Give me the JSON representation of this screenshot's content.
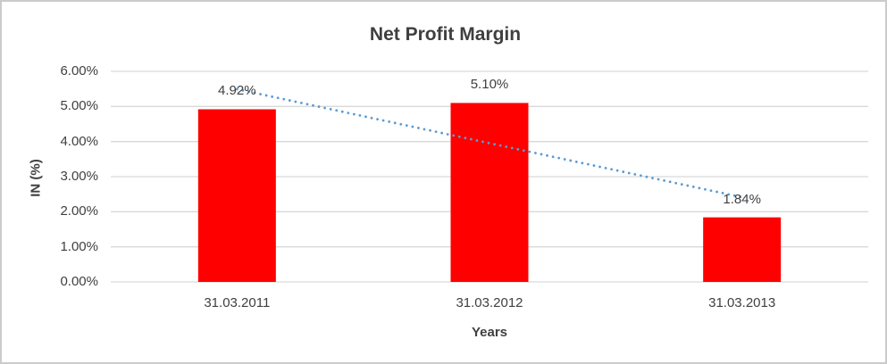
{
  "chart_data": {
    "type": "bar",
    "title": "Net Profit Margin",
    "xlabel": "Years",
    "ylabel": "IN (%)",
    "categories": [
      "31.03.2011",
      "31.03.2012",
      "31.03.2013"
    ],
    "values": [
      4.92,
      5.1,
      1.84
    ],
    "data_labels": [
      "4.92%",
      "5.10%",
      "1.84%"
    ],
    "y_ticks": [
      0,
      1,
      2,
      3,
      4,
      5,
      6
    ],
    "y_tick_labels": [
      "0.00%",
      "1.00%",
      "2.00%",
      "3.00%",
      "4.00%",
      "5.00%",
      "6.00%"
    ],
    "ylim": [
      0,
      6
    ],
    "grid": true,
    "legend": false,
    "trendline": {
      "type": "linear",
      "style": "dotted"
    },
    "colors": {
      "bar": "#FF0000",
      "trendline": "#5B9BD5",
      "gridline": "#D9D9D9",
      "axis_line": "#D9D9D9",
      "text": "#404040"
    }
  }
}
